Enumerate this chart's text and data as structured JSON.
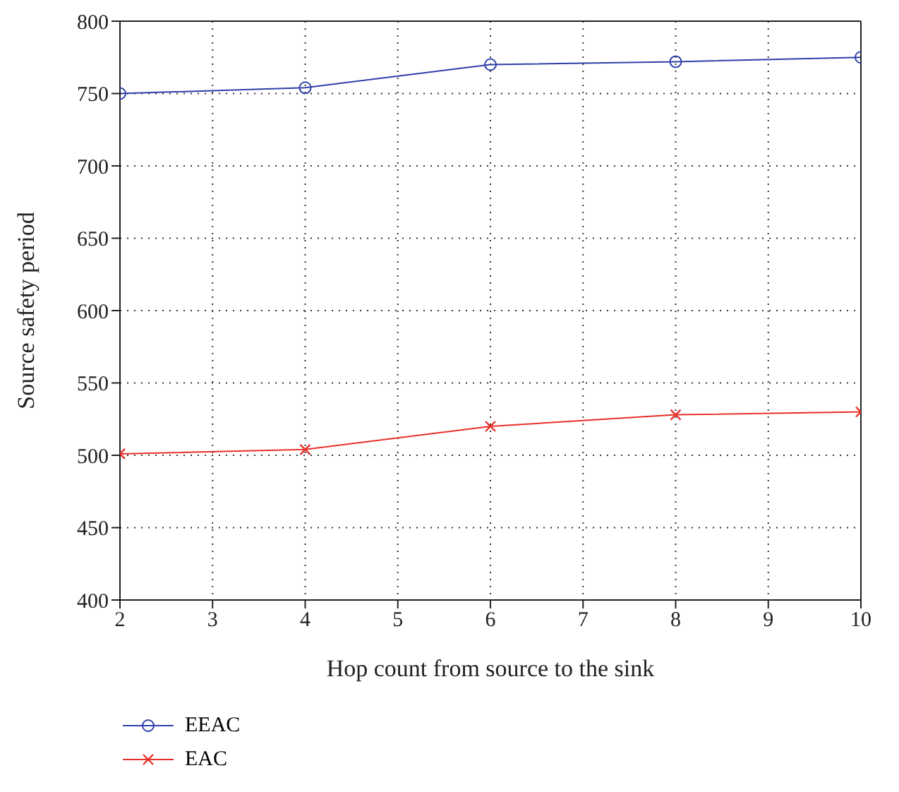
{
  "chart_data": {
    "type": "line",
    "xlabel": "Hop count from source to the sink",
    "ylabel": "Source safety period",
    "x": [
      2,
      4,
      6,
      8,
      10
    ],
    "series": [
      {
        "name": "EEAC",
        "color": "#2e3fa8",
        "marker": "circle",
        "values": [
          750,
          754,
          770,
          772,
          775
        ]
      },
      {
        "name": "EAC",
        "color": "#e8302a",
        "marker": "cross",
        "values": [
          501,
          504,
          520,
          528,
          530
        ]
      }
    ],
    "xlim": [
      2,
      10
    ],
    "xticks": [
      2,
      3,
      4,
      5,
      6,
      7,
      8,
      9,
      10
    ],
    "ylim": [
      400,
      800
    ],
    "yticks": [
      400,
      450,
      500,
      550,
      600,
      650,
      700,
      750,
      800
    ],
    "grid": true,
    "legend": "bottom left",
    "line_style": "solid"
  }
}
